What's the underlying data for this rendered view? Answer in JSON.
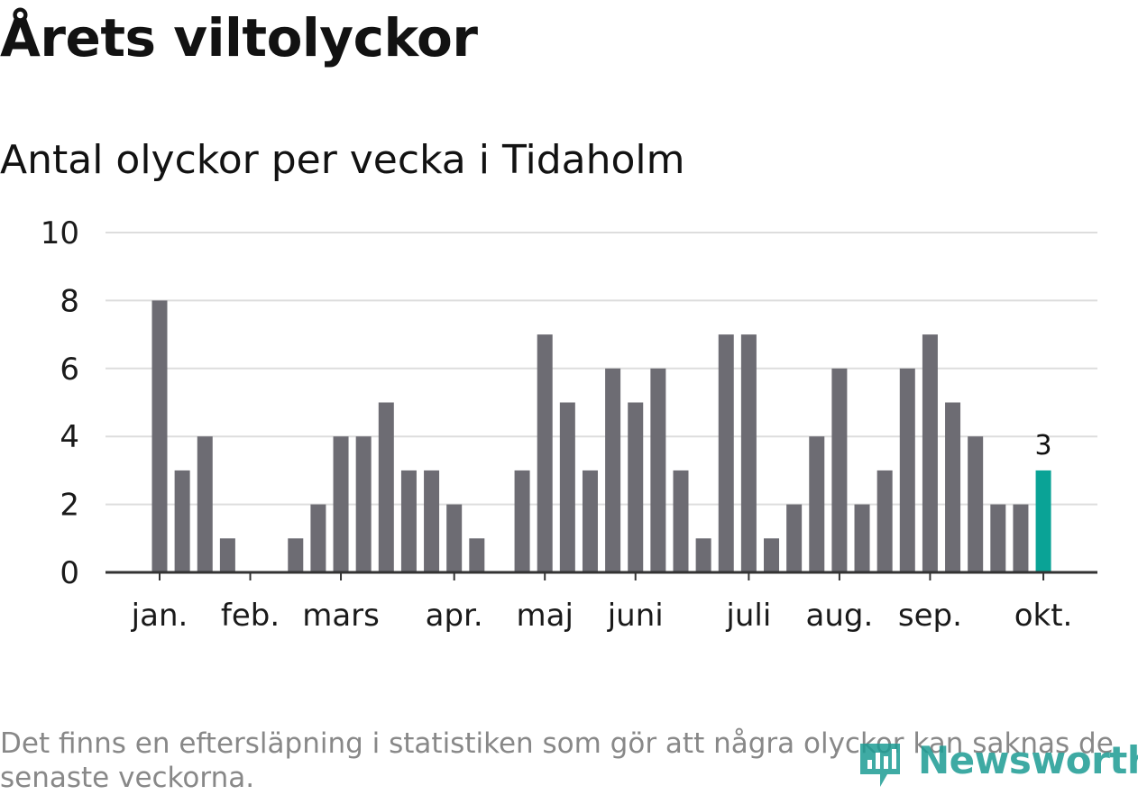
{
  "header": {
    "title": "Årets viltolyckor",
    "subtitle": "Antal olyckor per vecka i Tidaholm"
  },
  "footer": {
    "note": "Det finns en eftersläpning i statistiken som gör att några olyckor kan saknas de senaste veckorna.",
    "logo_text": "Newsworthy",
    "logo_icon": "newsworthy-logo-icon"
  },
  "colors": {
    "bar": "#6d6c73",
    "highlight": "#0aa396",
    "grid": "#dddddd",
    "axis": "#333333",
    "brand": "#1d9c94"
  },
  "chart_data": {
    "type": "bar",
    "title": "",
    "xlabel": "",
    "ylabel": "",
    "ylim": [
      0,
      10
    ],
    "yticks": [
      0,
      2,
      4,
      6,
      8,
      10
    ],
    "grid": true,
    "weeks": [
      1,
      2,
      3,
      4,
      5,
      6,
      7,
      8,
      9,
      10,
      11,
      12,
      13,
      14,
      15,
      16,
      17,
      18,
      19,
      20,
      21,
      22,
      23,
      24,
      25,
      26,
      27,
      28,
      29,
      30,
      31,
      32,
      33,
      34,
      35,
      36,
      37,
      38,
      39,
      40
    ],
    "values": [
      8,
      3,
      4,
      1,
      0,
      0,
      1,
      2,
      4,
      4,
      5,
      3,
      3,
      2,
      1,
      0,
      3,
      7,
      5,
      3,
      6,
      5,
      6,
      3,
      1,
      7,
      7,
      1,
      2,
      4,
      6,
      2,
      3,
      6,
      7,
      5,
      4,
      2,
      2,
      3
    ],
    "highlight_last": true,
    "highlight_label": "3",
    "month_labels": [
      {
        "label": "jan.",
        "week": 1
      },
      {
        "label": "feb.",
        "week": 5
      },
      {
        "label": "mars",
        "week": 9
      },
      {
        "label": "apr.",
        "week": 14
      },
      {
        "label": "maj",
        "week": 18
      },
      {
        "label": "juni",
        "week": 22
      },
      {
        "label": "juli",
        "week": 27
      },
      {
        "label": "aug.",
        "week": 31
      },
      {
        "label": "sep.",
        "week": 35
      },
      {
        "label": "okt.",
        "week": 40
      }
    ]
  }
}
